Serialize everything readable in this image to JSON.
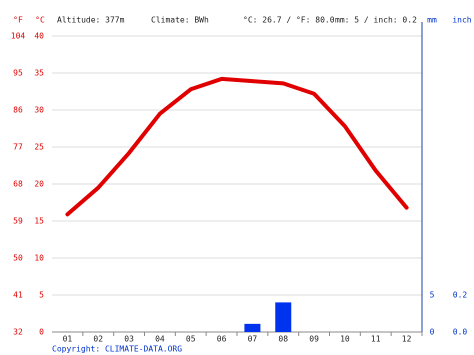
{
  "chart_data": {
    "type": "climate",
    "header": {
      "altitude": "Altitude: 377m",
      "climate": "Climate: BWh",
      "temperature": "°C: 26.7 / °F: 80.0",
      "precipitation": "mm: 5 / inch: 0.2"
    },
    "unit_labels": {
      "f": "°F",
      "c": "°C",
      "mm": "mm",
      "inch": "inch"
    },
    "copyright": "Copyright: CLIMATE-DATA.ORG",
    "categories": [
      "01",
      "02",
      "03",
      "04",
      "05",
      "06",
      "07",
      "08",
      "09",
      "10",
      "11",
      "12"
    ],
    "series": [
      {
        "name": "Temperature °C",
        "color": "#e00000",
        "values": [
          15.9,
          19.5,
          24.2,
          29.5,
          32.8,
          34.2,
          33.9,
          33.6,
          32.2,
          27.8,
          21.8,
          16.8
        ]
      },
      {
        "name": "Precipitation mm",
        "color": "#0033ee",
        "axis": "y2",
        "values": [
          0,
          0,
          0,
          0,
          0,
          0,
          1.1,
          4.0,
          0,
          0,
          0,
          0
        ]
      }
    ],
    "ylim": [
      0,
      40
    ],
    "yticks": [
      0,
      5,
      10,
      15,
      20,
      25,
      30,
      35,
      40
    ],
    "yflim": [
      32,
      104
    ],
    "yfticks": [
      32,
      41,
      50,
      59,
      68,
      77,
      86,
      95,
      104
    ],
    "y2lim": [
      0,
      40
    ],
    "y2ticks": [
      0,
      5
    ],
    "y3lim": [
      0,
      1.6
    ],
    "y3ticks": [
      {
        "value": 0,
        "label": "0.0"
      },
      0.2
    ],
    "grid": true
  }
}
